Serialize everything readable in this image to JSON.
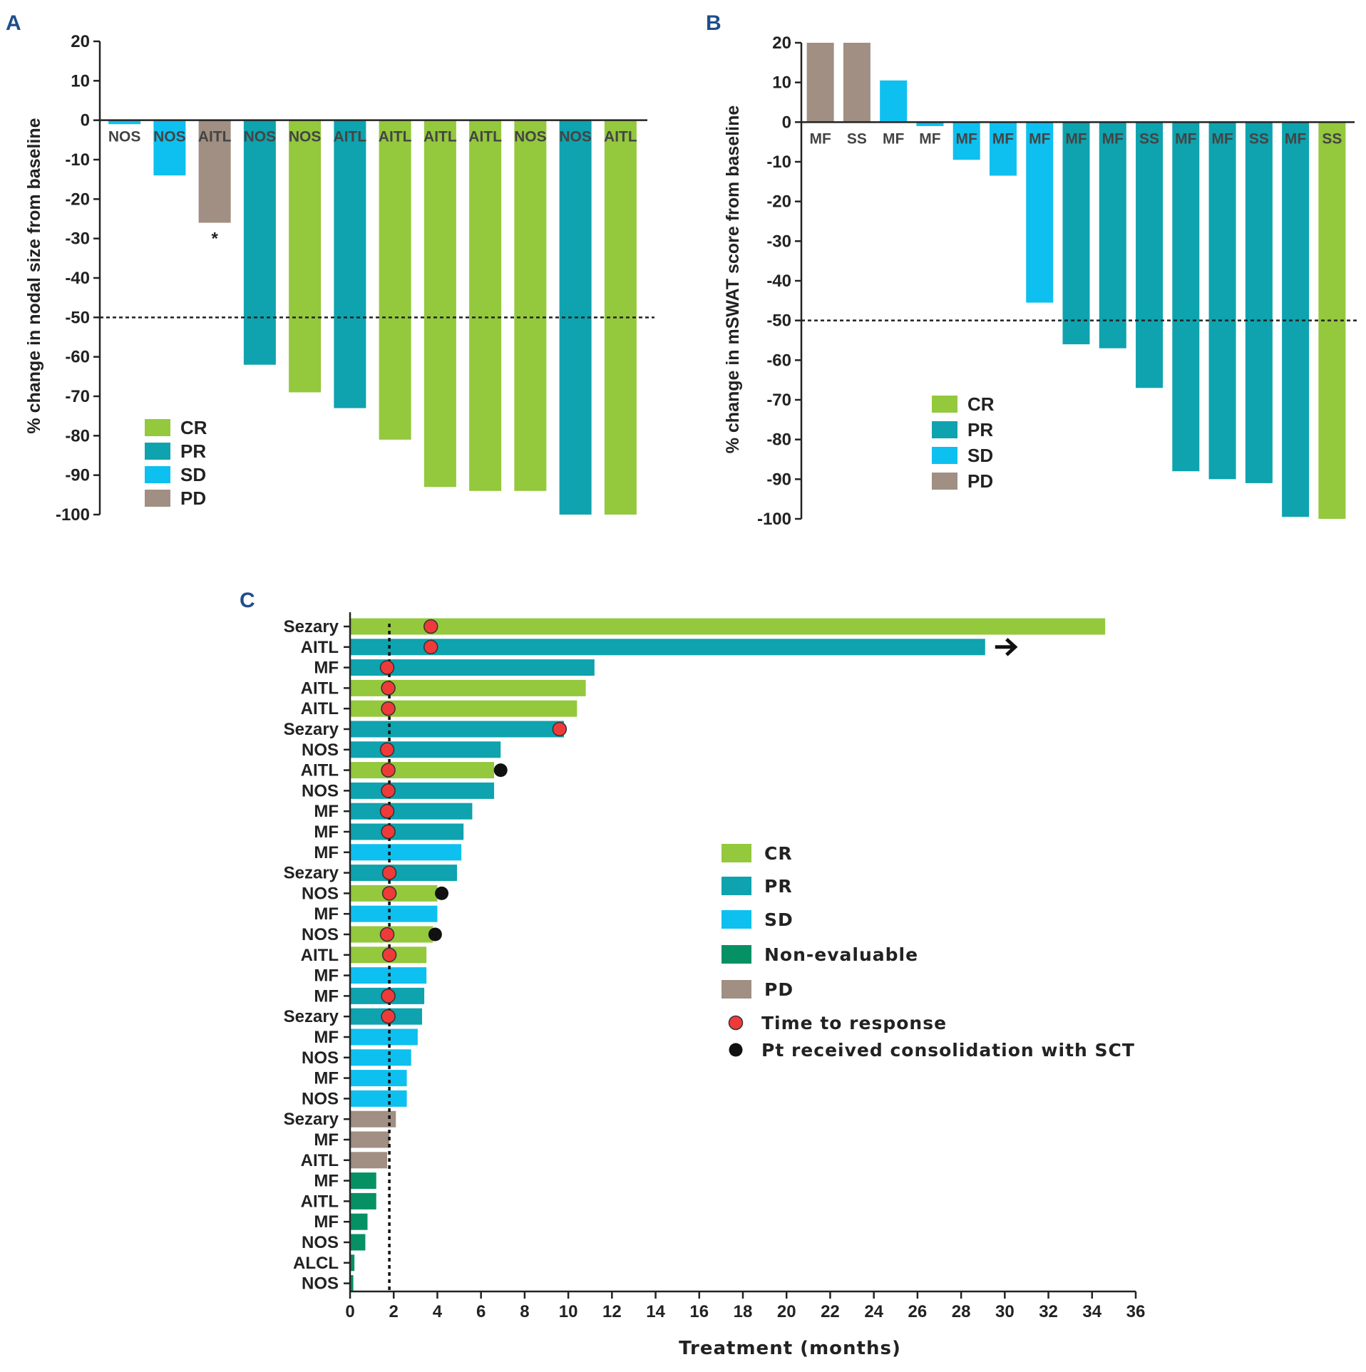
{
  "colors": {
    "CR": "#94c83d",
    "PR": "#0ea3ae",
    "SD": "#0ec0ef",
    "PD": "#a08f82",
    "NE": "#069164",
    "response_dot": "#ef3a3a",
    "sct_dot": "#111111",
    "axis": "#222222",
    "panel_label": "#1f4e8c"
  },
  "panels": {
    "a": {
      "label": "A"
    },
    "b": {
      "label": "B"
    },
    "c": {
      "label": "C"
    }
  },
  "chart_data": [
    {
      "id": "a",
      "type": "bar",
      "title": "",
      "ylabel": "% change in nodal size from baseline",
      "xlabel": "",
      "ylim": [
        -100,
        20
      ],
      "yticks": [
        20,
        10,
        0,
        -10,
        -20,
        -30,
        -40,
        -50,
        -60,
        -70,
        -80,
        -90,
        -100
      ],
      "ytick_labels": [
        "20",
        "10",
        "0",
        "-10",
        "-20",
        "-30",
        "-40",
        "-50",
        "-60",
        "-70",
        "-80",
        "-90",
        "-100"
      ],
      "reference_line": -50,
      "categories": [
        "NOS",
        "NOS",
        "AITL",
        "NOS",
        "NOS",
        "AITL",
        "AITL",
        "AITL",
        "AITL",
        "NOS",
        "NOS",
        "AITL"
      ],
      "values": [
        -1,
        -14,
        -26,
        -62,
        -69,
        -73,
        -81,
        -93,
        -94,
        -94,
        -100,
        -100
      ],
      "response": [
        "SD",
        "SD",
        "PD",
        "PR",
        "CR",
        "PR",
        "CR",
        "CR",
        "CR",
        "CR",
        "PR",
        "CR"
      ],
      "annotations": [
        {
          "bar_index": 2,
          "text": "*"
        }
      ],
      "legend": [
        {
          "key": "CR",
          "label": "CR"
        },
        {
          "key": "PR",
          "label": "PR"
        },
        {
          "key": "SD",
          "label": "SD"
        },
        {
          "key": "PD",
          "label": "PD"
        }
      ],
      "legend_position": "bottom-left"
    },
    {
      "id": "b",
      "type": "bar",
      "title": "",
      "ylabel": "% change in mSWAT score from baseline",
      "xlabel": "",
      "ylim": [
        -100,
        20
      ],
      "yticks": [
        20,
        10,
        0,
        -10,
        -20,
        -30,
        -40,
        -50,
        -60,
        -70,
        -80,
        -90,
        -100
      ],
      "ytick_labels": [
        "20",
        "10",
        "0",
        "-10",
        "-20",
        "-30",
        "-40",
        "-50",
        "-60",
        "-70",
        "-80",
        "-90",
        "-100"
      ],
      "reference_line": -50,
      "categories": [
        "MF",
        "SS",
        "MF",
        "MF",
        "MF",
        "MF",
        "MF",
        "MF",
        "MF",
        "SS",
        "MF",
        "MF",
        "SS",
        "MF",
        "SS"
      ],
      "values": [
        20,
        20,
        10.5,
        -1,
        -9.5,
        -13.5,
        -45.5,
        -56,
        -57,
        -67,
        -88,
        -90,
        -91,
        -99.5,
        -100
      ],
      "response": [
        "PD",
        "PD",
        "SD",
        "SD",
        "SD",
        "SD",
        "SD",
        "PR",
        "PR",
        "PR",
        "PR",
        "PR",
        "PR",
        "PR",
        "CR"
      ],
      "legend": [
        {
          "key": "CR",
          "label": "CR"
        },
        {
          "key": "PR",
          "label": "PR"
        },
        {
          "key": "SD",
          "label": "SD"
        },
        {
          "key": "PD",
          "label": "PD"
        }
      ],
      "legend_position": "middle-left"
    },
    {
      "id": "c",
      "type": "bar",
      "orientation": "horizontal",
      "title": "",
      "xlabel": "Treatment (months)",
      "ylabel": "",
      "xlim": [
        0,
        36
      ],
      "xticks": [
        0,
        2,
        4,
        6,
        8,
        10,
        12,
        14,
        16,
        18,
        20,
        22,
        24,
        26,
        28,
        30,
        32,
        34,
        36
      ],
      "xtick_labels": [
        "0",
        "2",
        "4",
        "6",
        "8",
        "10",
        "12",
        "14",
        "16",
        "18",
        "20",
        "22",
        "24",
        "26",
        "28",
        "30",
        "32",
        "34",
        "36"
      ],
      "reference_line": 1.8,
      "categories": [
        "Sezary",
        "AITL",
        "MF",
        "AITL",
        "AITL",
        "Sezary",
        "NOS",
        "AITL",
        "NOS",
        "MF",
        "MF",
        "MF",
        "Sezary",
        "NOS",
        "MF",
        "NOS",
        "AITL",
        "MF",
        "MF",
        "Sezary",
        "MF",
        "NOS",
        "MF",
        "NOS",
        "Sezary",
        "MF",
        "AITL",
        "MF",
        "AITL",
        "MF",
        "NOS",
        "ALCL",
        "NOS"
      ],
      "values": [
        34.6,
        29.1,
        11.2,
        10.8,
        10.4,
        9.8,
        6.9,
        6.6,
        6.6,
        5.6,
        5.2,
        5.1,
        4.9,
        4.0,
        4.0,
        3.8,
        3.5,
        3.5,
        3.4,
        3.3,
        3.1,
        2.8,
        2.6,
        2.6,
        2.1,
        1.8,
        1.7,
        1.2,
        1.2,
        0.8,
        0.7,
        0.2,
        0.15
      ],
      "response": [
        "CR",
        "PR",
        "PR",
        "CR",
        "CR",
        "PR",
        "PR",
        "CR",
        "PR",
        "PR",
        "PR",
        "SD",
        "PR",
        "CR",
        "SD",
        "CR",
        "CR",
        "SD",
        "PR",
        "PR",
        "SD",
        "SD",
        "SD",
        "SD",
        "PD",
        "PD",
        "PD",
        "NE",
        "NE",
        "NE",
        "NE",
        "NE",
        "NE"
      ],
      "time_to_response": [
        3.7,
        3.7,
        1.7,
        1.75,
        1.75,
        9.6,
        1.7,
        1.75,
        1.75,
        1.7,
        1.75,
        null,
        1.8,
        1.8,
        null,
        1.7,
        1.8,
        null,
        1.75,
        1.75,
        null,
        null,
        null,
        null,
        null,
        null,
        null,
        null,
        null,
        null,
        null,
        null,
        null
      ],
      "sct_consolidation": [
        null,
        null,
        null,
        null,
        null,
        null,
        null,
        6.9,
        null,
        null,
        null,
        null,
        null,
        4.2,
        null,
        3.9,
        null,
        null,
        null,
        null,
        null,
        null,
        null,
        null,
        null,
        null,
        null,
        null,
        null,
        null,
        null,
        null,
        null
      ],
      "ongoing": [
        false,
        true,
        false,
        false,
        false,
        false,
        false,
        false,
        false,
        false,
        false,
        false,
        false,
        false,
        false,
        false,
        false,
        false,
        false,
        false,
        false,
        false,
        false,
        false,
        false,
        false,
        false,
        false,
        false,
        false,
        false,
        false,
        false
      ],
      "legend": [
        {
          "key": "CR",
          "label": "CR",
          "kind": "box"
        },
        {
          "key": "PR",
          "label": "PR",
          "kind": "box"
        },
        {
          "key": "SD",
          "label": "SD",
          "kind": "box"
        },
        {
          "key": "NE",
          "label": "Non-evaluable",
          "kind": "box"
        },
        {
          "key": "PD",
          "label": "PD",
          "kind": "box"
        },
        {
          "key": "response_dot",
          "label": "Time to response",
          "kind": "dot"
        },
        {
          "key": "sct_dot",
          "label": "Pt received consolidation with SCT",
          "kind": "dot"
        }
      ],
      "legend_position": "center-right"
    }
  ]
}
